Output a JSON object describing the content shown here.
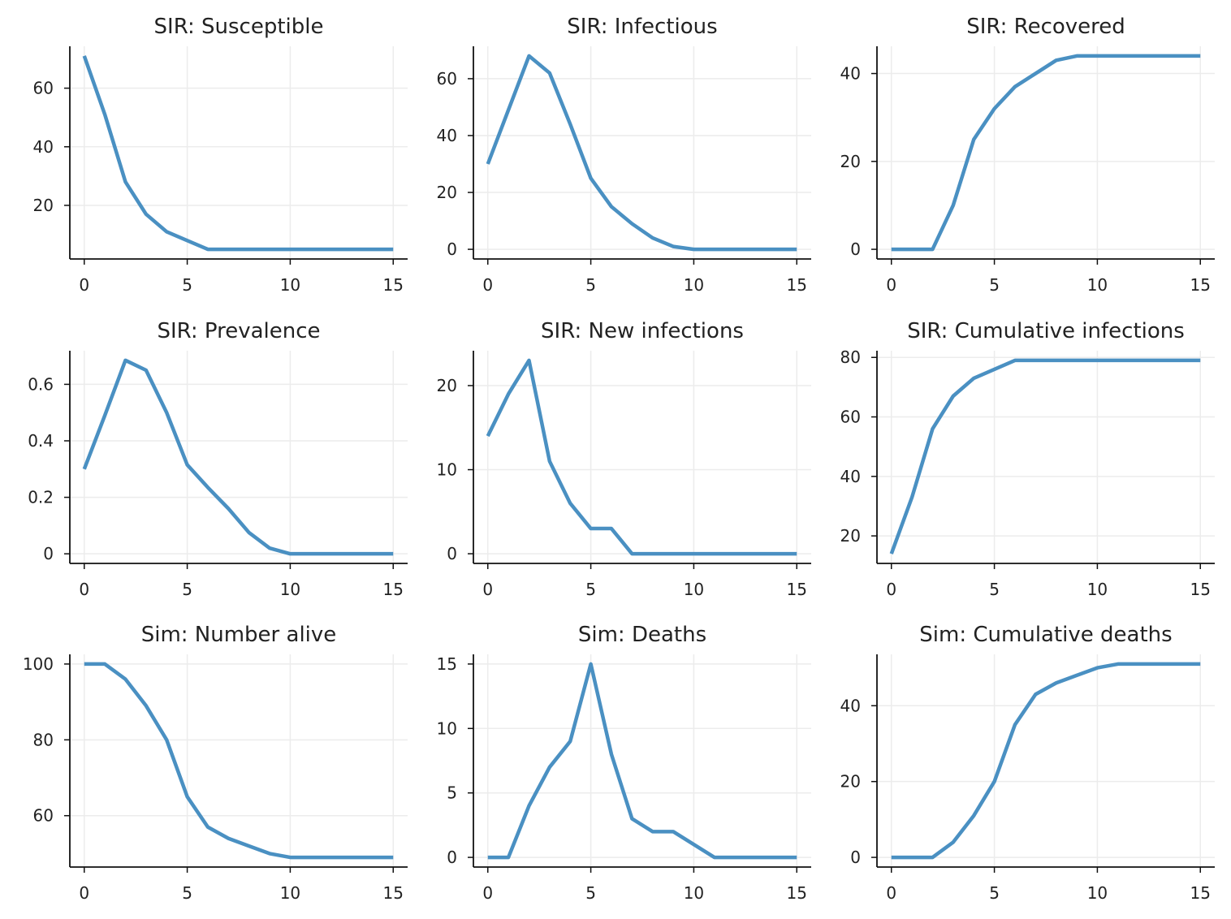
{
  "line_color": "#4a90c2",
  "chart_data": [
    {
      "type": "line",
      "title": "SIR: Susceptible",
      "xlabel": "",
      "ylabel": "",
      "x": [
        0,
        1,
        2,
        3,
        4,
        5,
        6,
        7,
        8,
        9,
        10,
        11,
        12,
        13,
        14,
        15
      ],
      "series": [
        {
          "values": [
            71,
            51,
            28,
            17,
            11,
            8,
            5,
            5,
            5,
            5,
            5,
            5,
            5,
            5,
            5,
            5
          ]
        }
      ],
      "xlim": [
        -0.7,
        15.7
      ],
      "ylim": [
        1.7,
        74.3
      ],
      "xticks": [
        0,
        5,
        10,
        15
      ],
      "yticks": [
        20,
        40,
        60
      ],
      "xticklabels": [
        "0",
        "5",
        "10",
        "15"
      ],
      "yticklabels": [
        "20",
        "40",
        "60"
      ]
    },
    {
      "type": "line",
      "title": "SIR: Infectious",
      "xlabel": "",
      "ylabel": "",
      "x": [
        0,
        1,
        2,
        3,
        4,
        5,
        6,
        7,
        8,
        9,
        10,
        11,
        12,
        13,
        14,
        15
      ],
      "series": [
        {
          "values": [
            30,
            49,
            68,
            62,
            44,
            25,
            15,
            9,
            4,
            1,
            0,
            0,
            0,
            0,
            0,
            0
          ]
        }
      ],
      "xlim": [
        -0.7,
        15.7
      ],
      "ylim": [
        -3.4,
        71.4
      ],
      "xticks": [
        0,
        5,
        10,
        15
      ],
      "yticks": [
        0,
        20,
        40,
        60
      ],
      "xticklabels": [
        "0",
        "5",
        "10",
        "15"
      ],
      "yticklabels": [
        "0",
        "20",
        "40",
        "60"
      ]
    },
    {
      "type": "line",
      "title": "SIR: Recovered",
      "xlabel": "",
      "ylabel": "",
      "x": [
        0,
        1,
        2,
        3,
        4,
        5,
        6,
        7,
        8,
        9,
        10,
        11,
        12,
        13,
        14,
        15
      ],
      "series": [
        {
          "values": [
            0,
            0,
            0,
            10,
            25,
            32,
            37,
            40,
            43,
            44,
            44,
            44,
            44,
            44,
            44,
            44
          ]
        }
      ],
      "xlim": [
        -0.7,
        15.7
      ],
      "ylim": [
        -2.2,
        46.2
      ],
      "xticks": [
        0,
        5,
        10,
        15
      ],
      "yticks": [
        0,
        20,
        40
      ],
      "xticklabels": [
        "0",
        "5",
        "10",
        "15"
      ],
      "yticklabels": [
        "0",
        "20",
        "40"
      ]
    },
    {
      "type": "line",
      "title": "SIR: Prevalence",
      "xlabel": "",
      "ylabel": "",
      "x": [
        0,
        1,
        2,
        3,
        4,
        5,
        6,
        7,
        8,
        9,
        10,
        11,
        12,
        13,
        14,
        15
      ],
      "series": [
        {
          "values": [
            0.3,
            0.49,
            0.685,
            0.65,
            0.5,
            0.315,
            0.235,
            0.16,
            0.075,
            0.02,
            0,
            0,
            0,
            0,
            0,
            0
          ]
        }
      ],
      "xlim": [
        -0.7,
        15.7
      ],
      "ylim": [
        -0.034,
        0.719
      ],
      "xticks": [
        0,
        5,
        10,
        15
      ],
      "yticks": [
        0,
        0.2,
        0.4,
        0.6
      ],
      "xticklabels": [
        "0",
        "5",
        "10",
        "15"
      ],
      "yticklabels": [
        "0",
        "0.2",
        "0.4",
        "0.6"
      ]
    },
    {
      "type": "line",
      "title": "SIR: New infections",
      "xlabel": "",
      "ylabel": "",
      "x": [
        0,
        1,
        2,
        3,
        4,
        5,
        6,
        7,
        8,
        9,
        10,
        11,
        12,
        13,
        14,
        15
      ],
      "series": [
        {
          "values": [
            14,
            19,
            23,
            11,
            6,
            3,
            3,
            0,
            0,
            0,
            0,
            0,
            0,
            0,
            0,
            0
          ]
        }
      ],
      "xlim": [
        -0.7,
        15.7
      ],
      "ylim": [
        -1.15,
        24.15
      ],
      "xticks": [
        0,
        5,
        10,
        15
      ],
      "yticks": [
        0,
        10,
        20
      ],
      "xticklabels": [
        "0",
        "5",
        "10",
        "15"
      ],
      "yticklabels": [
        "0",
        "10",
        "20"
      ]
    },
    {
      "type": "line",
      "title": "SIR: Cumulative infections",
      "xlabel": "",
      "ylabel": "",
      "x": [
        0,
        1,
        2,
        3,
        4,
        5,
        6,
        7,
        8,
        9,
        10,
        11,
        12,
        13,
        14,
        15
      ],
      "series": [
        {
          "values": [
            14,
            33,
            56,
            67,
            73,
            76,
            79,
            79,
            79,
            79,
            79,
            79,
            79,
            79,
            79,
            79
          ]
        }
      ],
      "xlim": [
        -0.7,
        15.7
      ],
      "ylim": [
        10.75,
        82.25
      ],
      "xticks": [
        0,
        5,
        10,
        15
      ],
      "yticks": [
        20,
        40,
        60,
        80
      ],
      "xticklabels": [
        "0",
        "5",
        "10",
        "15"
      ],
      "yticklabels": [
        "20",
        "40",
        "60",
        "80"
      ]
    },
    {
      "type": "line",
      "title": "Sim: Number alive",
      "xlabel": "",
      "ylabel": "",
      "x": [
        0,
        1,
        2,
        3,
        4,
        5,
        6,
        7,
        8,
        9,
        10,
        11,
        12,
        13,
        14,
        15
      ],
      "series": [
        {
          "values": [
            100,
            100,
            96,
            89,
            80,
            65,
            57,
            54,
            52,
            50,
            49,
            49,
            49,
            49,
            49,
            49
          ]
        }
      ],
      "xlim": [
        -0.7,
        15.7
      ],
      "ylim": [
        46.45,
        102.55
      ],
      "xticks": [
        0,
        5,
        10,
        15
      ],
      "yticks": [
        60,
        80,
        100
      ],
      "xticklabels": [
        "0",
        "5",
        "10",
        "15"
      ],
      "yticklabels": [
        "60",
        "80",
        "100"
      ]
    },
    {
      "type": "line",
      "title": "Sim: Deaths",
      "xlabel": "",
      "ylabel": "",
      "x": [
        0,
        1,
        2,
        3,
        4,
        5,
        6,
        7,
        8,
        9,
        10,
        11,
        12,
        13,
        14,
        15
      ],
      "series": [
        {
          "values": [
            0,
            0,
            4,
            7,
            9,
            15,
            8,
            3,
            2,
            2,
            1,
            0,
            0,
            0,
            0,
            0
          ]
        }
      ],
      "xlim": [
        -0.7,
        15.7
      ],
      "ylim": [
        -0.75,
        15.75
      ],
      "xticks": [
        0,
        5,
        10,
        15
      ],
      "yticks": [
        0,
        5,
        10,
        15
      ],
      "xticklabels": [
        "0",
        "5",
        "10",
        "15"
      ],
      "yticklabels": [
        "0",
        "5",
        "10",
        "15"
      ]
    },
    {
      "type": "line",
      "title": "Sim: Cumulative deaths",
      "xlabel": "",
      "ylabel": "",
      "x": [
        0,
        1,
        2,
        3,
        4,
        5,
        6,
        7,
        8,
        9,
        10,
        11,
        12,
        13,
        14,
        15
      ],
      "series": [
        {
          "values": [
            0,
            0,
            0,
            4,
            11,
            20,
            35,
            43,
            46,
            48,
            50,
            51,
            51,
            51,
            51,
            51
          ]
        }
      ],
      "xlim": [
        -0.7,
        15.7
      ],
      "ylim": [
        -2.55,
        53.55
      ],
      "xticks": [
        0,
        5,
        10,
        15
      ],
      "yticks": [
        0,
        20,
        40
      ],
      "xticklabels": [
        "0",
        "5",
        "10",
        "15"
      ],
      "yticklabels": [
        "0",
        "20",
        "40"
      ]
    }
  ]
}
